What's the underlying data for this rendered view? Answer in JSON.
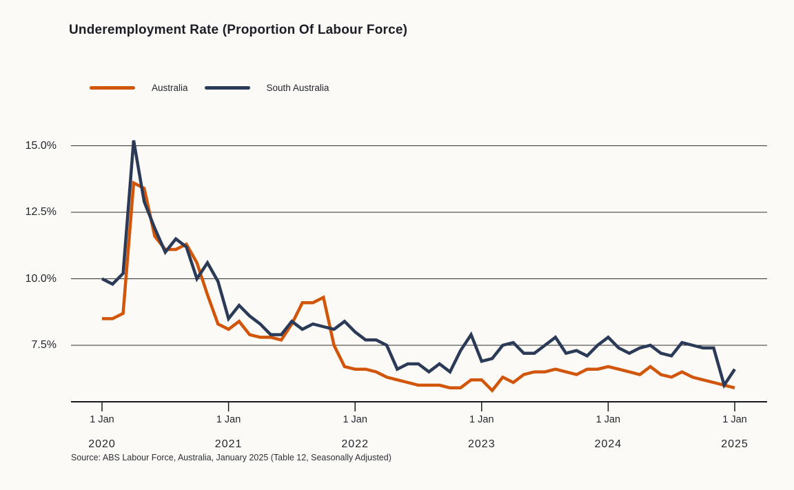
{
  "title": "Underemployment Rate (Proportion Of Labour Force)",
  "source_note": "Source: ABS Labour Force, Australia, January 2025 (Table 12, Seasonally Adjusted)",
  "colors": {
    "background": "#fbfaf6",
    "australia": "#d2560a",
    "south_australia": "#2b3a56",
    "gridline": "#2e2e2e",
    "axis": "#17181c",
    "text": "#23262c"
  },
  "chart_data": {
    "type": "line",
    "title": "Underemployment Rate (Proportion Of Labour Force)",
    "xlabel": "",
    "ylabel": "",
    "grid": true,
    "legend_position": "top-left",
    "ylim": [
      5.4,
      15.6
    ],
    "y_ticks": [
      {
        "label": "15.0%",
        "value": 15.0
      },
      {
        "label": "12.5%",
        "value": 12.5
      },
      {
        "label": "10.0%",
        "value": 10.0
      },
      {
        "label": "7.5%",
        "value": 7.5
      }
    ],
    "x_ticks": [
      {
        "label": "1 Jan",
        "year": "2020",
        "month_index": 0
      },
      {
        "label": "1 Jan",
        "year": "2021",
        "month_index": 12
      },
      {
        "label": "1 Jan",
        "year": "2022",
        "month_index": 24
      },
      {
        "label": "1 Jan",
        "year": "2023",
        "month_index": 36
      },
      {
        "label": "1 Jan",
        "year": "2024",
        "month_index": 48
      },
      {
        "label": "1 Jan",
        "year": "2025",
        "month_index": 60
      }
    ],
    "x": [
      "2020-01",
      "2020-02",
      "2020-03",
      "2020-04",
      "2020-05",
      "2020-06",
      "2020-07",
      "2020-08",
      "2020-09",
      "2020-10",
      "2020-11",
      "2020-12",
      "2021-01",
      "2021-02",
      "2021-03",
      "2021-04",
      "2021-05",
      "2021-06",
      "2021-07",
      "2021-08",
      "2021-09",
      "2021-10",
      "2021-11",
      "2021-12",
      "2022-01",
      "2022-02",
      "2022-03",
      "2022-04",
      "2022-05",
      "2022-06",
      "2022-07",
      "2022-08",
      "2022-09",
      "2022-10",
      "2022-11",
      "2022-12",
      "2023-01",
      "2023-02",
      "2023-03",
      "2023-04",
      "2023-05",
      "2023-06",
      "2023-07",
      "2023-08",
      "2023-09",
      "2023-10",
      "2023-11",
      "2023-12",
      "2024-01",
      "2024-02",
      "2024-03",
      "2024-04",
      "2024-05",
      "2024-06",
      "2024-07",
      "2024-08",
      "2024-09",
      "2024-10",
      "2024-11",
      "2024-12",
      "2025-01"
    ],
    "series": [
      {
        "name": "Australia",
        "color": "#d2560a",
        "values": [
          8.5,
          8.5,
          8.7,
          13.6,
          13.4,
          11.6,
          11.1,
          11.1,
          11.3,
          10.6,
          9.4,
          8.3,
          8.1,
          8.4,
          7.9,
          7.8,
          7.8,
          7.7,
          8.3,
          9.1,
          9.1,
          9.3,
          7.5,
          6.7,
          6.6,
          6.6,
          6.5,
          6.3,
          6.2,
          6.1,
          6.0,
          6.0,
          6.0,
          5.9,
          5.9,
          6.2,
          6.2,
          5.8,
          6.3,
          6.1,
          6.4,
          6.5,
          6.5,
          6.6,
          6.5,
          6.4,
          6.6,
          6.6,
          6.7,
          6.6,
          6.5,
          6.4,
          6.7,
          6.4,
          6.3,
          6.5,
          6.3,
          6.2,
          6.1,
          6.0,
          5.9
        ]
      },
      {
        "name": "South Australia",
        "color": "#2b3a56",
        "values": [
          10.0,
          9.8,
          10.2,
          15.2,
          12.9,
          11.9,
          11.0,
          11.5,
          11.2,
          10.0,
          10.6,
          9.9,
          8.5,
          9.0,
          8.6,
          8.3,
          7.9,
          7.9,
          8.4,
          8.1,
          8.3,
          8.2,
          8.1,
          8.4,
          8.0,
          7.7,
          7.7,
          7.5,
          6.6,
          6.8,
          6.8,
          6.5,
          6.8,
          6.5,
          7.3,
          7.9,
          6.9,
          7.0,
          7.5,
          7.6,
          7.2,
          7.2,
          7.5,
          7.8,
          7.2,
          7.3,
          7.1,
          7.5,
          7.8,
          7.4,
          7.2,
          7.4,
          7.5,
          7.2,
          7.1,
          7.6,
          7.5,
          7.4,
          7.4,
          6.0,
          6.6
        ]
      }
    ]
  }
}
